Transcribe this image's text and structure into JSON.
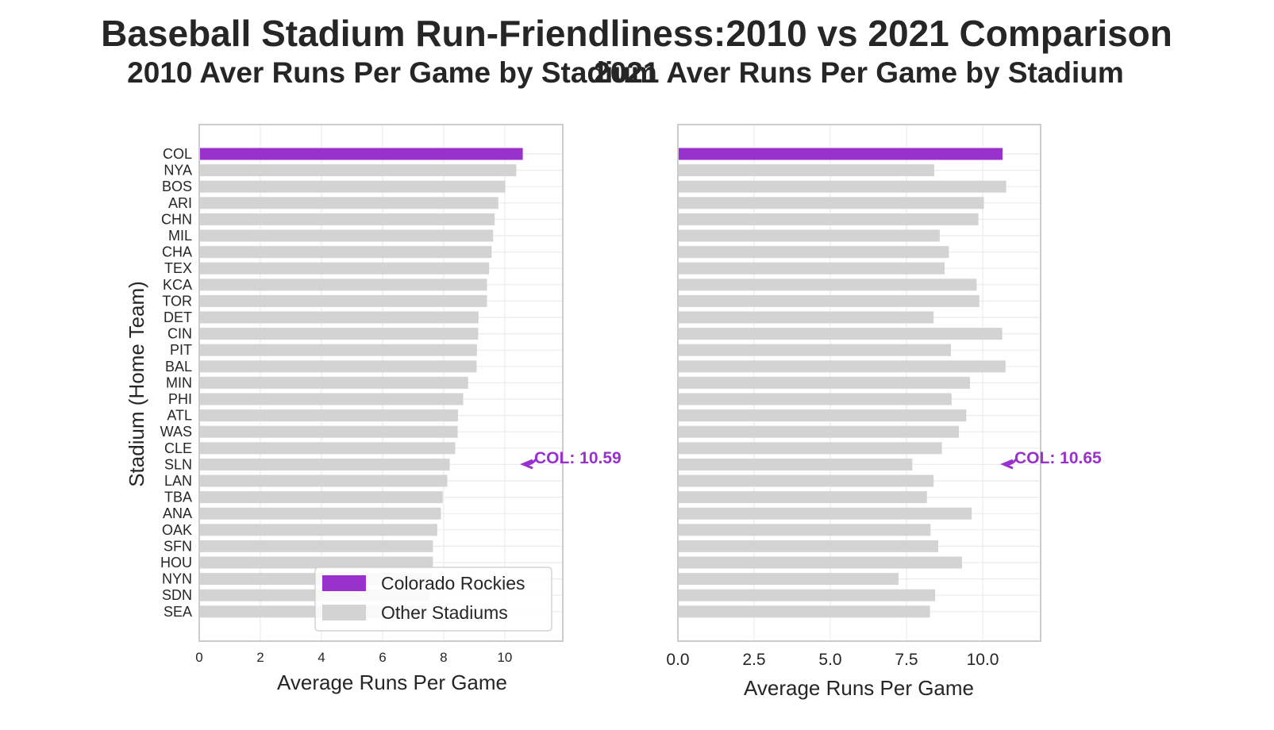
{
  "title": "Baseball Stadium Run-Friendliness:2010 vs 2021 Comparison",
  "colors": {
    "highlight": "#9932CC",
    "other": "#D3D3D3",
    "grid": "#EBEBEB",
    "spine": "#CCCCCC",
    "text": "#262626"
  },
  "legend": {
    "items": [
      "Colorado Rockies",
      "Other Stadiums"
    ],
    "placement": "lower-right of left panel"
  },
  "chart_data": [
    {
      "type": "bar",
      "orientation": "horizontal",
      "title": "2010 Aver Runs Per Game by Stadium",
      "xlabel": "Average Runs Per Game",
      "ylabel": "Stadium (Home Team)",
      "xlim": [
        0,
        11.9
      ],
      "xticks": [
        0,
        2,
        4,
        6,
        8,
        10
      ],
      "xtick_labels": [
        "0",
        "2",
        "4",
        "6",
        "8",
        "10"
      ],
      "grid": true,
      "highlight": "COL",
      "annotation": "COL: 10.59",
      "categories": [
        "COL",
        "NYA",
        "BOS",
        "ARI",
        "CHN",
        "MIL",
        "CHA",
        "TEX",
        "KCA",
        "TOR",
        "DET",
        "CIN",
        "PIT",
        "BAL",
        "MIN",
        "PHI",
        "ATL",
        "WAS",
        "CLE",
        "SLN",
        "LAN",
        "TBA",
        "ANA",
        "OAK",
        "SFN",
        "HOU",
        "NYN",
        "SDN",
        "SEA"
      ],
      "values": [
        10.59,
        10.38,
        10.02,
        9.79,
        9.67,
        9.62,
        9.57,
        9.49,
        9.42,
        9.42,
        9.14,
        9.13,
        9.09,
        9.08,
        8.8,
        8.64,
        8.47,
        8.46,
        8.38,
        8.2,
        8.12,
        7.97,
        7.91,
        7.79,
        7.65,
        7.65,
        7.6,
        7.55,
        7.5
      ]
    },
    {
      "type": "bar",
      "orientation": "horizontal",
      "title": "2021 Aver Runs Per Game by Stadium",
      "xlabel": "Average Runs Per Game",
      "xlim": [
        0,
        11.9
      ],
      "xticks": [
        0,
        2.5,
        5,
        7.5,
        10
      ],
      "xtick_labels": [
        "0.0",
        "2.5",
        "5.0",
        "7.5",
        "10.0"
      ],
      "grid": true,
      "highlight": "COL",
      "annotation": "COL: 10.65",
      "categories": [
        "COL",
        "NYA",
        "BOS",
        "ARI",
        "CHN",
        "MIL",
        "CHA",
        "TEX",
        "KCA",
        "TOR",
        "DET",
        "CIN",
        "PIT",
        "BAL",
        "MIN",
        "PHI",
        "ATL",
        "WAS",
        "CLE",
        "SLN",
        "LAN",
        "TBA",
        "ANA",
        "OAK",
        "SFN",
        "HOU",
        "NYN",
        "SDN",
        "SEA"
      ],
      "values": [
        10.65,
        8.41,
        10.77,
        10.04,
        9.86,
        8.59,
        8.89,
        8.75,
        9.8,
        9.89,
        8.39,
        10.64,
        8.96,
        10.75,
        9.58,
        8.98,
        9.46,
        9.22,
        8.66,
        7.69,
        8.39,
        8.17,
        9.64,
        8.29,
        8.54,
        9.32,
        7.24,
        8.44,
        8.27
      ]
    }
  ]
}
